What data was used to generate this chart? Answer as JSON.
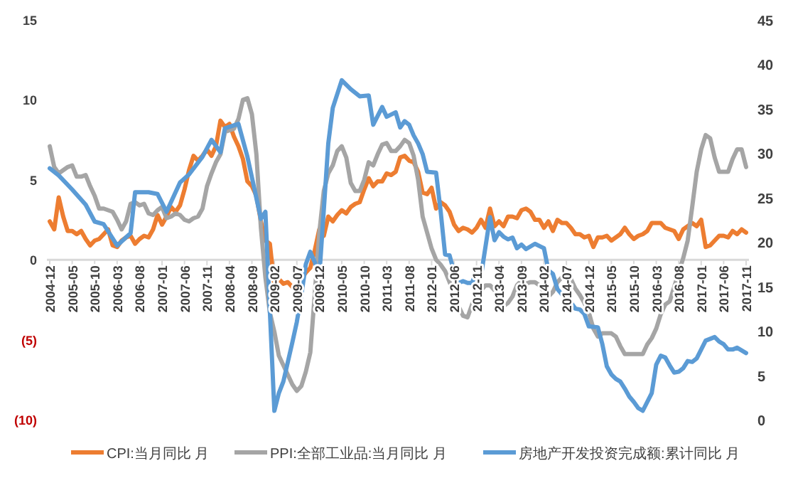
{
  "chart_data": {
    "type": "line",
    "legend": "bottom",
    "grid": false,
    "marker": "none",
    "line_style": "solid",
    "xlim": [
      "2004-12",
      "2017-11"
    ],
    "xticks": [
      "2004-12",
      "2005-05",
      "2005-10",
      "2006-03",
      "2006-08",
      "2007-01",
      "2007-06",
      "2007-11",
      "2008-04",
      "2008-09",
      "2009-02",
      "2009-07",
      "2009-12",
      "2010-05",
      "2010-10",
      "2011-03",
      "2011-08",
      "2012-01",
      "2012-06",
      "2012-11",
      "2013-04",
      "2013-09",
      "2014-02",
      "2014-07",
      "2014-12",
      "2015-05",
      "2015-10",
      "2016-03",
      "2016-08",
      "2017-01",
      "2017-06",
      "2017-11"
    ],
    "ylim": [
      -10,
      15
    ],
    "yticks": [
      {
        "value": -10,
        "label": "(10)"
      },
      {
        "value": -5,
        "label": "(5)"
      },
      0,
      5,
      10,
      15
    ],
    "y2lim": [
      0,
      45
    ],
    "y2ticks": [
      0,
      5,
      10,
      15,
      20,
      25,
      30,
      35,
      40,
      45
    ],
    "x": [
      "2004-12",
      "2005-01",
      "2005-02",
      "2005-03",
      "2005-04",
      "2005-05",
      "2005-06",
      "2005-07",
      "2005-08",
      "2005-09",
      "2005-10",
      "2005-11",
      "2005-12",
      "2006-01",
      "2006-02",
      "2006-03",
      "2006-04",
      "2006-05",
      "2006-06",
      "2006-07",
      "2006-08",
      "2006-09",
      "2006-10",
      "2006-11",
      "2006-12",
      "2007-01",
      "2007-02",
      "2007-03",
      "2007-04",
      "2007-05",
      "2007-06",
      "2007-07",
      "2007-08",
      "2007-09",
      "2007-10",
      "2007-11",
      "2007-12",
      "2008-01",
      "2008-02",
      "2008-03",
      "2008-04",
      "2008-05",
      "2008-06",
      "2008-07",
      "2008-08",
      "2008-09",
      "2008-10",
      "2008-11",
      "2008-12",
      "2009-01",
      "2009-02",
      "2009-03",
      "2009-04",
      "2009-05",
      "2009-06",
      "2009-07",
      "2009-08",
      "2009-09",
      "2009-10",
      "2009-11",
      "2009-12",
      "2010-01",
      "2010-02",
      "2010-03",
      "2010-04",
      "2010-05",
      "2010-06",
      "2010-07",
      "2010-08",
      "2010-09",
      "2010-10",
      "2010-11",
      "2010-12",
      "2011-01",
      "2011-02",
      "2011-03",
      "2011-04",
      "2011-05",
      "2011-06",
      "2011-07",
      "2011-08",
      "2011-09",
      "2011-10",
      "2011-11",
      "2011-12",
      "2012-01",
      "2012-02",
      "2012-03",
      "2012-04",
      "2012-05",
      "2012-06",
      "2012-07",
      "2012-08",
      "2012-09",
      "2012-10",
      "2012-11",
      "2012-12",
      "2013-01",
      "2013-02",
      "2013-03",
      "2013-04",
      "2013-05",
      "2013-06",
      "2013-07",
      "2013-08",
      "2013-09",
      "2013-10",
      "2013-11",
      "2013-12",
      "2014-01",
      "2014-02",
      "2014-03",
      "2014-04",
      "2014-05",
      "2014-06",
      "2014-07",
      "2014-08",
      "2014-09",
      "2014-10",
      "2014-11",
      "2014-12",
      "2015-01",
      "2015-02",
      "2015-03",
      "2015-04",
      "2015-05",
      "2015-06",
      "2015-07",
      "2015-08",
      "2015-09",
      "2015-10",
      "2015-11",
      "2015-12",
      "2016-01",
      "2016-02",
      "2016-03",
      "2016-04",
      "2016-05",
      "2016-06",
      "2016-07",
      "2016-08",
      "2016-09",
      "2016-10",
      "2016-11",
      "2016-12",
      "2017-01",
      "2017-02",
      "2017-03",
      "2017-04",
      "2017-05",
      "2017-06",
      "2017-07",
      "2017-08",
      "2017-09",
      "2017-10",
      "2017-11"
    ],
    "series": [
      {
        "name": "CPI:当月同比 月",
        "color": "#ed7d31",
        "values": [
          2.4,
          1.9,
          3.9,
          2.7,
          1.8,
          1.8,
          1.6,
          1.8,
          1.3,
          0.9,
          1.2,
          1.3,
          1.6,
          1.9,
          0.9,
          0.8,
          1.2,
          1.4,
          1.5,
          1.0,
          1.3,
          1.5,
          1.4,
          1.9,
          2.8,
          2.2,
          2.7,
          3.3,
          3.0,
          3.4,
          4.4,
          5.6,
          6.5,
          6.2,
          6.5,
          6.9,
          6.5,
          7.1,
          8.7,
          8.3,
          8.5,
          7.7,
          7.1,
          6.3,
          4.9,
          4.6,
          4.0,
          2.4,
          1.2,
          1.0,
          -1.6,
          -1.2,
          -1.5,
          -1.4,
          -1.7,
          -1.8,
          -1.2,
          -0.8,
          -0.5,
          0.6,
          1.9,
          1.5,
          2.7,
          2.4,
          2.8,
          3.1,
          2.9,
          3.3,
          3.5,
          3.6,
          4.4,
          5.1,
          4.6,
          4.9,
          4.9,
          5.4,
          5.3,
          5.5,
          6.4,
          6.5,
          6.2,
          6.1,
          5.5,
          4.2,
          4.1,
          4.5,
          3.2,
          3.6,
          3.4,
          3.0,
          2.2,
          1.8,
          2.0,
          1.9,
          1.7,
          2.0,
          2.5,
          2.0,
          3.2,
          2.1,
          2.4,
          2.1,
          2.7,
          2.7,
          2.6,
          3.1,
          3.2,
          3.0,
          2.5,
          2.5,
          2.0,
          2.4,
          1.8,
          2.5,
          2.3,
          2.3,
          2.0,
          1.6,
          1.6,
          1.4,
          1.5,
          0.8,
          1.4,
          1.4,
          1.5,
          1.2,
          1.4,
          1.6,
          2.0,
          1.6,
          1.3,
          1.5,
          1.6,
          1.8,
          2.3,
          2.3,
          2.3,
          2.0,
          1.9,
          1.8,
          1.3,
          1.9,
          2.1,
          2.3,
          2.1,
          2.5,
          0.8,
          0.9,
          1.2,
          1.5,
          1.5,
          1.4,
          1.8,
          1.6,
          1.9,
          1.7
        ]
      },
      {
        "name": "PPI:全部工业品:当月同比 月",
        "color": "#a5a5a5",
        "values": [
          7.1,
          5.8,
          5.4,
          5.6,
          5.8,
          5.9,
          5.2,
          5.2,
          5.3,
          4.6,
          4.0,
          3.2,
          3.2,
          3.1,
          3.0,
          2.5,
          1.9,
          2.4,
          3.5,
          3.6,
          3.4,
          3.5,
          2.9,
          2.8,
          3.1,
          3.3,
          2.6,
          2.7,
          2.9,
          2.8,
          2.5,
          2.4,
          2.6,
          2.7,
          3.2,
          4.6,
          5.4,
          6.1,
          6.6,
          8.0,
          8.1,
          8.2,
          8.8,
          10.0,
          10.1,
          9.1,
          6.6,
          2.0,
          -1.1,
          -3.3,
          -4.5,
          -6.0,
          -6.6,
          -7.2,
          -7.8,
          -8.2,
          -7.9,
          -7.0,
          -5.8,
          -2.1,
          1.7,
          4.3,
          5.4,
          5.9,
          6.8,
          7.1,
          6.4,
          4.8,
          4.3,
          4.3,
          5.0,
          6.1,
          5.9,
          6.6,
          7.2,
          7.3,
          6.8,
          6.8,
          7.1,
          7.5,
          7.3,
          6.5,
          5.0,
          2.7,
          1.7,
          0.7,
          0.0,
          -0.3,
          -0.7,
          -1.4,
          -2.1,
          -2.9,
          -3.5,
          -3.6,
          -2.8,
          -2.2,
          -1.9,
          -1.6,
          -1.6,
          -1.9,
          -2.6,
          -2.9,
          -2.7,
          -2.3,
          -1.6,
          -1.3,
          -1.5,
          -1.4,
          -1.4,
          -1.6,
          -2.0,
          -2.3,
          -2.0,
          -1.4,
          -1.1,
          -0.9,
          -1.2,
          -1.8,
          -2.2,
          -2.7,
          -3.3,
          -4.3,
          -4.8,
          -4.6,
          -4.6,
          -4.6,
          -4.8,
          -5.4,
          -5.9,
          -5.9,
          -5.9,
          -5.9,
          -5.9,
          -5.3,
          -4.9,
          -4.3,
          -3.4,
          -2.8,
          -2.6,
          -1.7,
          -0.8,
          0.1,
          1.2,
          3.3,
          5.5,
          6.9,
          7.8,
          7.6,
          6.4,
          5.5,
          5.5,
          5.5,
          6.3,
          6.9,
          6.9,
          5.8
        ]
      },
      {
        "name": "房地产开发投资完成额:累计同比 月",
        "color": "#5b9bd5",
        "axis": "y2",
        "x": [
          "2004-12",
          "2005-02",
          "2005-05",
          "2005-08",
          "2005-10",
          "2005-12",
          "2006-03",
          "2006-06",
          "2006-07",
          "2006-10",
          "2006-12",
          "2007-02",
          "2007-05",
          "2007-07",
          "2007-10",
          "2007-12",
          "2008-02",
          "2008-03",
          "2008-06",
          "2008-08",
          "2008-11",
          "2008-12",
          "2009-02",
          "2009-03",
          "2009-04",
          "2009-05",
          "2009-06",
          "2009-07",
          "2009-08",
          "2009-09",
          "2009-10",
          "2009-11",
          "2009-12",
          "2010-02",
          "2010-03",
          "2010-05",
          "2010-07",
          "2010-09",
          "2010-11",
          "2010-12",
          "2011-02",
          "2011-03",
          "2011-05",
          "2011-06",
          "2011-07",
          "2011-08",
          "2011-09",
          "2011-10",
          "2011-11",
          "2011-12",
          "2012-02",
          "2012-03",
          "2012-04",
          "2012-05",
          "2012-06",
          "2012-07",
          "2012-08",
          "2012-09",
          "2012-10",
          "2012-11",
          "2012-12",
          "2013-02",
          "2013-03",
          "2013-04",
          "2013-05",
          "2013-06",
          "2013-07",
          "2013-08",
          "2013-09",
          "2013-10",
          "2013-11",
          "2013-12",
          "2014-02",
          "2014-03",
          "2014-04",
          "2014-05",
          "2014-06",
          "2014-07",
          "2014-08",
          "2014-09",
          "2014-10",
          "2014-11",
          "2014-12",
          "2015-02",
          "2015-03",
          "2015-04",
          "2015-05",
          "2015-06",
          "2015-07",
          "2015-08",
          "2015-09",
          "2015-10",
          "2015-11",
          "2015-12",
          "2016-02",
          "2016-03",
          "2016-04",
          "2016-05",
          "2016-06",
          "2016-07",
          "2016-08",
          "2016-09",
          "2016-10",
          "2016-11",
          "2016-12",
          "2017-02",
          "2017-03",
          "2017-04",
          "2017-05",
          "2017-06",
          "2017-07",
          "2017-08",
          "2017-09",
          "2017-10",
          "2017-11"
        ],
        "values": [
          28.3,
          27.5,
          25.9,
          24.2,
          22.3,
          22.0,
          19.6,
          21.0,
          25.6,
          25.6,
          25.4,
          23.4,
          26.7,
          27.6,
          29.6,
          31.5,
          30.1,
          32.8,
          33.3,
          29.6,
          22.6,
          23.4,
          1.0,
          3.0,
          4.3,
          6.5,
          8.7,
          11.0,
          14.0,
          17.5,
          18.9,
          17.7,
          16.1,
          31.1,
          35.1,
          38.2,
          37.2,
          36.4,
          36.5,
          33.2,
          35.2,
          34.1,
          34.6,
          32.9,
          33.6,
          33.2,
          32.0,
          31.1,
          29.9,
          27.9,
          27.8,
          23.5,
          18.6,
          18.5,
          16.6,
          15.4,
          15.6,
          15.4,
          15.4,
          16.7,
          16.2,
          22.8,
          20.2,
          21.1,
          20.6,
          20.3,
          20.5,
          19.3,
          19.7,
          19.2,
          19.5,
          19.8,
          19.3,
          16.8,
          16.4,
          14.7,
          14.1,
          13.7,
          13.2,
          12.5,
          12.4,
          11.9,
          10.5,
          10.4,
          8.5,
          6.0,
          5.1,
          4.6,
          4.3,
          3.5,
          2.6,
          2.0,
          1.3,
          1.0,
          3.0,
          6.2,
          7.2,
          7.0,
          6.1,
          5.3,
          5.4,
          5.8,
          6.6,
          6.5,
          6.9,
          8.9,
          9.1,
          9.3,
          8.8,
          8.5,
          7.9,
          7.9,
          8.1,
          7.8,
          7.5
        ]
      }
    ]
  }
}
